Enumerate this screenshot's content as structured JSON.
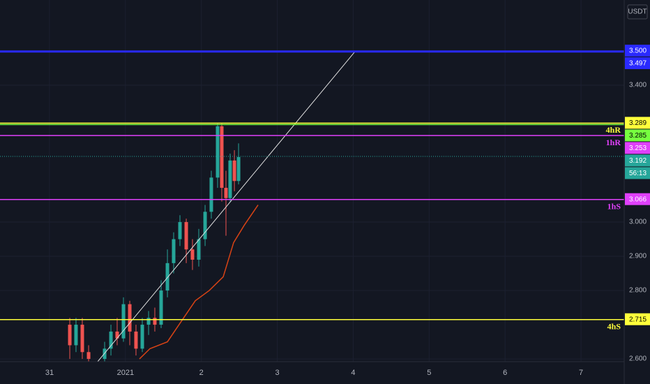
{
  "chart_data": {
    "type": "candlestick",
    "currency": "USDT",
    "xlim": [
      30.348,
      38.569
    ],
    "ylim": [
      2.592,
      3.649
    ],
    "grid": true,
    "xticks": [
      {
        "value": 31,
        "label": "31"
      },
      {
        "value": 32,
        "label": "2021"
      },
      {
        "value": 33,
        "label": "2"
      },
      {
        "value": 34,
        "label": "3"
      },
      {
        "value": 35,
        "label": "4"
      },
      {
        "value": 36,
        "label": "5"
      },
      {
        "value": 37,
        "label": "6"
      },
      {
        "value": 38,
        "label": "7"
      }
    ],
    "yticks": [
      {
        "value": 3.4,
        "label": "3.400"
      },
      {
        "value": 3.0,
        "label": "3.000"
      },
      {
        "value": 2.9,
        "label": "2.900"
      },
      {
        "value": 2.8,
        "label": "2.800"
      },
      {
        "value": 2.6,
        "label": "2.600"
      }
    ],
    "up_color": "#26a69a",
    "down_color": "#ef5350",
    "candles": {
      "x": [
        31.267,
        31.349,
        31.432,
        31.515,
        31.726,
        31.809,
        31.891,
        31.974,
        32.057,
        32.139,
        32.222,
        32.305,
        32.387,
        32.47,
        32.553,
        32.635,
        32.718,
        32.801,
        32.883,
        32.966,
        33.049,
        33.131,
        33.214,
        33.269,
        33.324,
        33.379,
        33.435,
        33.49
      ],
      "open": [
        2.7,
        2.64,
        2.7,
        2.62,
        2.6,
        2.63,
        2.68,
        2.66,
        2.76,
        2.68,
        2.63,
        2.7,
        2.72,
        2.7,
        2.8,
        2.88,
        2.95,
        3.0,
        2.92,
        2.89,
        2.95,
        3.03,
        3.13,
        3.28,
        3.1,
        3.07,
        3.18,
        3.12
      ],
      "high": [
        2.72,
        2.72,
        2.72,
        2.64,
        2.65,
        2.7,
        2.72,
        2.78,
        2.77,
        2.7,
        2.72,
        2.74,
        2.75,
        2.83,
        2.92,
        2.97,
        3.02,
        3.01,
        2.95,
        2.98,
        3.05,
        3.15,
        3.29,
        3.29,
        3.15,
        3.2,
        3.21,
        3.23
      ],
      "low": [
        2.6,
        2.62,
        2.6,
        2.59,
        2.59,
        2.61,
        2.64,
        2.65,
        2.64,
        2.61,
        2.62,
        2.67,
        2.68,
        2.69,
        2.78,
        2.85,
        2.93,
        2.88,
        2.86,
        2.87,
        2.93,
        3.01,
        3.1,
        3.06,
        2.96,
        3.06,
        3.09,
        3.11
      ],
      "close": [
        2.64,
        2.7,
        2.62,
        2.6,
        2.63,
        2.68,
        2.66,
        2.76,
        2.68,
        2.63,
        2.7,
        2.72,
        2.7,
        2.8,
        2.88,
        2.95,
        3.0,
        2.92,
        2.89,
        2.95,
        3.03,
        3.13,
        3.28,
        3.1,
        3.07,
        3.18,
        3.12,
        3.19
      ]
    },
    "ma": {
      "color": "#d84315",
      "x": [
        32.185,
        32.323,
        32.553,
        32.736,
        32.92,
        33.104,
        33.288,
        33.425,
        33.563,
        33.747
      ],
      "values": [
        2.6,
        2.63,
        2.65,
        2.71,
        2.77,
        2.8,
        2.84,
        2.94,
        2.99,
        3.05
      ]
    },
    "trendline": {
      "color": "#e0e0e0",
      "x": [
        31.634,
        35.015
      ],
      "values": [
        2.592,
        3.496
      ]
    },
    "levels": [
      {
        "value": 3.5,
        "label": "3.500",
        "color": "#2a2aff",
        "text_color": "#ffffff"
      },
      {
        "value": 3.497,
        "label": "3.497",
        "color": "#2a2aff",
        "text_color": "#ffffff"
      },
      {
        "value": 3.289,
        "label": "3.289",
        "tag": "4hR",
        "color": "#ffff3b",
        "text_color": "#000000"
      },
      {
        "value": 3.285,
        "label": "3.285",
        "color": "#76ff3f",
        "text_color": "#000000"
      },
      {
        "value": 3.253,
        "label": "3.253",
        "tag": "1hR",
        "color": "#e040fb",
        "text_color": "#ffffff"
      },
      {
        "value": 3.192,
        "label": "3.192",
        "countdown": "56:13",
        "color": "#26a69a",
        "text_color": "#ffffff",
        "dotted": true
      },
      {
        "value": 3.066,
        "label": "3.066",
        "tag": "1hS",
        "color": "#e040fb",
        "text_color": "#ffffff"
      },
      {
        "value": 2.715,
        "label": "2.715",
        "tag": "4hS",
        "color": "#ffff3b",
        "text_color": "#000000"
      }
    ]
  }
}
